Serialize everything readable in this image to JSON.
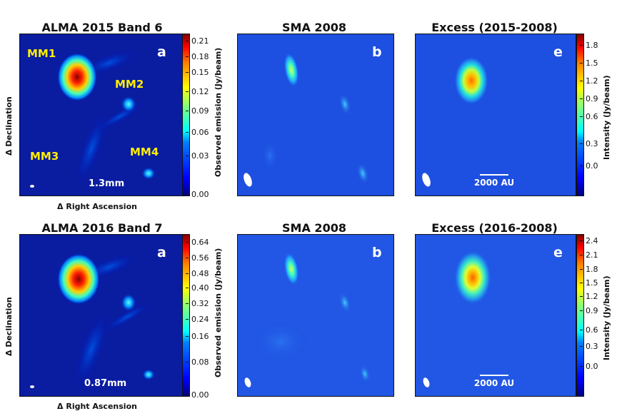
{
  "chart_data": [
    {
      "type": "heatmap",
      "title": "ALMA 2015 Band 6",
      "panel_label": "a",
      "xlabel": "Δ Right Ascension",
      "ylabel": "Δ Declination",
      "wavelength": "1.3mm",
      "sources": [
        "MM1",
        "MM2",
        "MM3",
        "MM4"
      ],
      "colorbar": {
        "label": "Observed emission (Jy/beam)",
        "ticks": [
          "0.21",
          "0.18",
          "0.15",
          "0.12",
          "0.09",
          "0.06",
          "0.03",
          "0.00"
        ],
        "range": [
          0.0,
          0.22
        ]
      }
    },
    {
      "type": "heatmap",
      "title": "SMA 2008",
      "panel_label": "b"
    },
    {
      "type": "heatmap",
      "title": "Excess (2015-2008)",
      "panel_label": "e",
      "scalebar": "2000 AU",
      "colorbar": {
        "label": "Intensity (Jy/beam)",
        "ticks": [
          "1.8",
          "1.5",
          "1.2",
          "0.9",
          "0.6",
          "0.3",
          "0.0"
        ],
        "range": [
          -0.3,
          2.0
        ]
      }
    },
    {
      "type": "heatmap",
      "title": "ALMA 2016 Band 7",
      "panel_label": "a",
      "xlabel": "Δ Right Ascension",
      "ylabel": "Δ Declination",
      "wavelength": "0.87mm",
      "colorbar": {
        "label": "Observed emission (Jy/beam)",
        "ticks": [
          "0.64",
          "0.56",
          "0.48",
          "0.40",
          "0.32",
          "0.24",
          "0.16",
          "0.08",
          "0.00"
        ],
        "range": [
          0.0,
          0.68
        ]
      }
    },
    {
      "type": "heatmap",
      "title": "SMA 2008",
      "panel_label": "b"
    },
    {
      "type": "heatmap",
      "title": "Excess (2016-2008)",
      "panel_label": "e",
      "scalebar": "2000 AU",
      "colorbar": {
        "label": "Intensity (Jy/beam)",
        "ticks": [
          "2.4",
          "2.1",
          "1.8",
          "1.5",
          "1.2",
          "0.9",
          "0.6",
          "0.3",
          "0.0"
        ],
        "range": [
          -0.35,
          2.5
        ]
      }
    }
  ],
  "colors": {
    "background_map": "#1d4fe0",
    "beam": "#ffffff",
    "source_label": "#ffee00"
  }
}
